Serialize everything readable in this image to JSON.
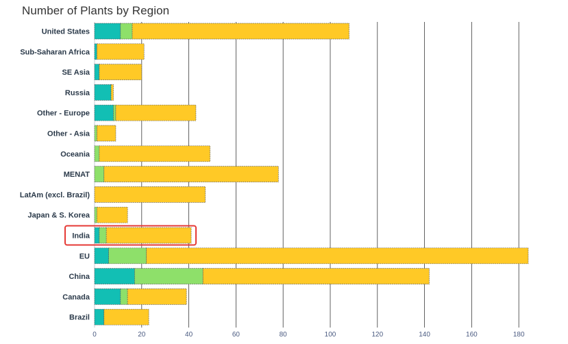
{
  "chart_data": {
    "type": "bar",
    "orientation": "horizontal",
    "stacked": true,
    "title": "Number of Plants by Region",
    "xlabel": "",
    "ylabel": "",
    "xlim": [
      0,
      185
    ],
    "x_ticks": [
      0,
      20,
      40,
      60,
      80,
      100,
      120,
      140,
      160,
      180
    ],
    "grid": "vertical",
    "legend": "none",
    "categories": [
      "United States",
      "Sub-Saharan Africa",
      "SE Asia",
      "Russia",
      "Other - Europe",
      "Other - Asia",
      "Oceania",
      "MENAT",
      "LatAm (excl. Brazil)",
      "Japan & S. Korea",
      "India",
      "EU",
      "China",
      "Canada",
      "Brazil"
    ],
    "series": [
      {
        "color": "#12bfb4",
        "values": [
          11,
          1,
          2,
          7,
          8,
          0,
          0,
          0,
          0,
          0,
          2,
          6,
          17,
          11,
          4
        ]
      },
      {
        "color": "#8ee06a",
        "values": [
          5,
          0,
          0,
          0,
          1,
          1,
          2,
          4,
          0,
          1,
          3,
          16,
          29,
          3,
          0
        ]
      },
      {
        "color": "#ffc926",
        "values": [
          92,
          20,
          18,
          1,
          34,
          8,
          47,
          74,
          47,
          13,
          36,
          162,
          96,
          25,
          19
        ]
      }
    ],
    "highlight": {
      "category": "India",
      "color": "#e53935"
    }
  }
}
